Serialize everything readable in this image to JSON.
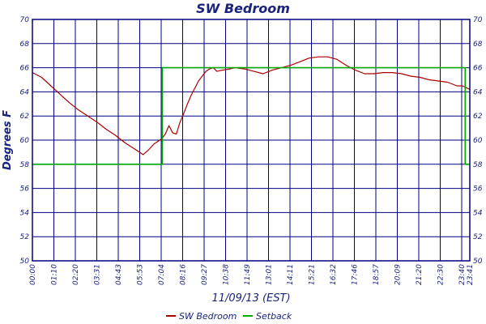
{
  "chart_data": {
    "type": "line",
    "title": "SW Bedroom",
    "xlabel": "11/09/13 (EST)",
    "ylabel": "Degrees F",
    "ylim": [
      50,
      70
    ],
    "yticks": [
      "50",
      "52",
      "54",
      "56",
      "58",
      "60",
      "62",
      "64",
      "66",
      "68",
      "70"
    ],
    "xticks": [
      "00:00",
      "01:10",
      "02:20",
      "03:31",
      "04:43",
      "05:53",
      "07:04",
      "08:16",
      "09:27",
      "10:38",
      "11:49",
      "13:01",
      "14:11",
      "15:21",
      "16:32",
      "17:46",
      "18:57",
      "20:09",
      "21:20",
      "22:30",
      "23:40",
      "23:41"
    ],
    "x_unit": "hours",
    "xlim": [
      0,
      23.7
    ],
    "grid": true,
    "legend_position": "bottom-center",
    "series": [
      {
        "name": "SW Bedroom",
        "color": "#aa0000",
        "x": [
          0,
          0.5,
          1.0,
          1.5,
          2.0,
          2.5,
          3.0,
          3.5,
          4.0,
          4.5,
          5.0,
          5.5,
          6.0,
          6.3,
          6.6,
          6.9,
          7.0,
          7.2,
          7.4,
          7.6,
          7.8,
          8.0,
          8.2,
          8.4,
          8.6,
          8.8,
          9.0,
          9.2,
          9.4,
          9.6,
          9.8,
          10.0,
          10.3,
          10.7,
          11.0,
          11.5,
          12.0,
          12.5,
          13.0,
          13.5,
          14.0,
          14.5,
          15.0,
          15.5,
          16.0,
          16.5,
          17.0,
          17.5,
          18.0,
          18.5,
          19.0,
          19.5,
          20.0,
          20.5,
          21.0,
          21.5,
          22.0,
          22.5,
          23.0,
          23.3,
          23.7
        ],
        "y": [
          65.6,
          65.2,
          64.5,
          63.8,
          63.1,
          62.5,
          62.0,
          61.5,
          60.9,
          60.4,
          59.8,
          59.3,
          58.8,
          59.2,
          59.7,
          60.0,
          60.1,
          60.5,
          61.2,
          60.6,
          60.5,
          61.5,
          62.2,
          63.0,
          63.7,
          64.3,
          64.9,
          65.3,
          65.7,
          65.9,
          66.0,
          65.7,
          65.8,
          65.9,
          66.0,
          65.9,
          65.7,
          65.5,
          65.8,
          66.0,
          66.2,
          66.5,
          66.8,
          66.9,
          66.9,
          66.7,
          66.2,
          65.8,
          65.5,
          65.5,
          65.6,
          65.6,
          65.5,
          65.3,
          65.2,
          65.0,
          64.9,
          64.8,
          64.5,
          64.5,
          64.2
        ]
      },
      {
        "name": "Setback",
        "color": "#00aa00",
        "x": [
          0,
          7.04,
          7.04,
          23.45,
          23.45,
          23.7
        ],
        "y": [
          58,
          58,
          66,
          66,
          58,
          58
        ]
      }
    ]
  }
}
